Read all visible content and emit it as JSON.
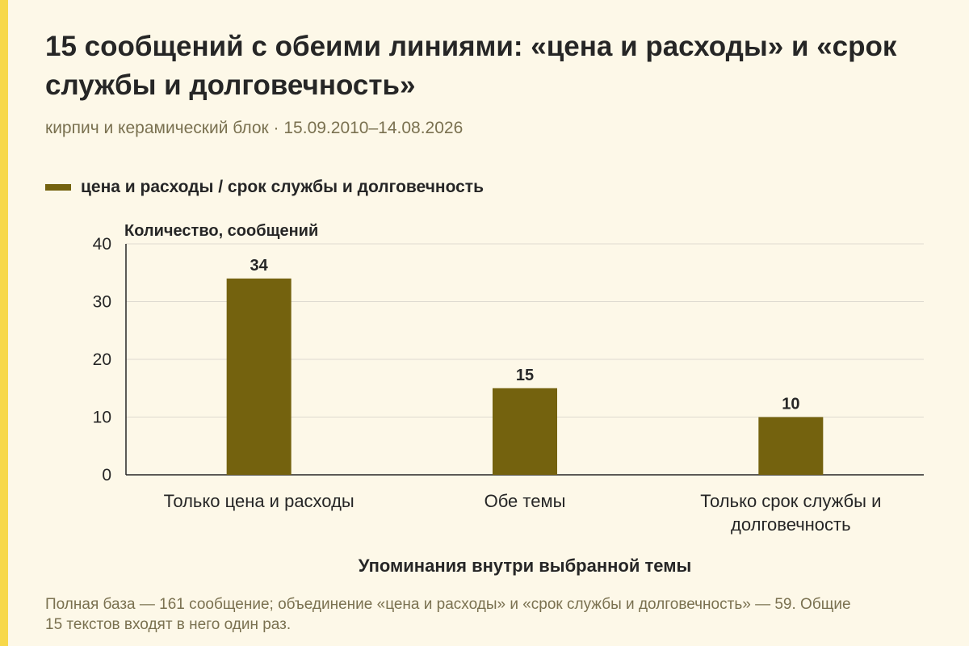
{
  "title": "15 сообщений с обеими линиями: «цена и расходы» и «срок службы и долговечность»",
  "subtitle": "кирпич и керамический блок · 15.09.2010–14.08.2026",
  "note": "Полная база — 161 сообщение; объединение «цена и расходы» и «срок службы и долговечность» — 59. Общие 15 текстов входят в него один раз.",
  "colors": {
    "bar": "#74620e",
    "accent": "#f7d84a",
    "grid": "#dedad0",
    "background": "#fdf8e8"
  },
  "chart_data": {
    "type": "bar",
    "title": "15 сообщений с обеими линиями: «цена и расходы» и «срок службы и долговечность»",
    "ylabel": "Количество, сообщений",
    "xlabel": "Упоминания внутри выбранной темы",
    "ylim": [
      0,
      40
    ],
    "yticks": [
      0,
      10,
      20,
      30,
      40
    ],
    "grid": true,
    "legend_position": "top-left",
    "categories": [
      [
        "Только цена и расходы"
      ],
      [
        "Обе темы"
      ],
      [
        "Только срок службы и",
        "долговечность"
      ]
    ],
    "series": [
      {
        "name": "цена и расходы / срок службы и долговечность",
        "values": [
          34,
          15,
          10
        ]
      }
    ]
  }
}
